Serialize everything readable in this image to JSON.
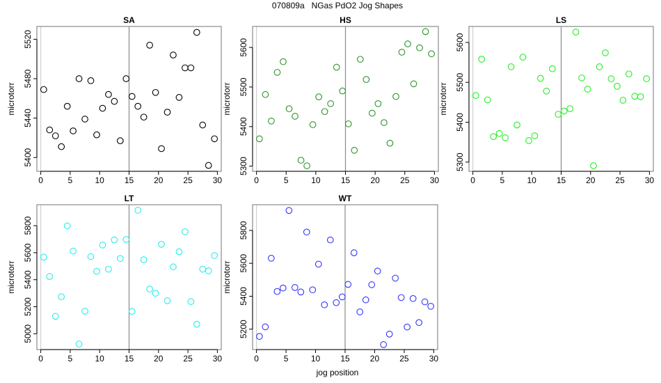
{
  "chart_data": {
    "type": "scatter",
    "title": "070809a   NGas PdO2 Jog Shapes",
    "xlabel": "jog position",
    "ylabel": "microtorr",
    "reference_lines_x": [
      0,
      15
    ],
    "x": [
      0.5,
      1.5,
      2.5,
      3.5,
      4.5,
      5.5,
      6.5,
      7.5,
      8.5,
      9.5,
      10.5,
      11.5,
      12.5,
      13.5,
      14.5,
      15.5,
      16.5,
      17.5,
      18.5,
      19.5,
      20.5,
      21.5,
      22.5,
      23.5,
      24.5,
      25.5,
      26.5,
      27.5,
      28.5,
      29.5
    ],
    "xlim": [
      -0.66,
      30.66
    ],
    "xticks": [
      0,
      5,
      10,
      15,
      20,
      25,
      30
    ],
    "panels": [
      {
        "name": "SA",
        "color": "#000000",
        "ylim": [
          5386,
          5533
        ],
        "yticks": [
          5400,
          5440,
          5480,
          5520
        ],
        "values": [
          5469,
          5428,
          5422,
          5411,
          5452,
          5427,
          5480,
          5439,
          5478,
          5423,
          5450,
          5464,
          5457,
          5417,
          5480,
          5462,
          5452,
          5441,
          5514,
          5466,
          5409,
          5446,
          5504,
          5461,
          5491,
          5491,
          5527,
          5433,
          5392,
          5419
        ]
      },
      {
        "name": "HS",
        "color": "#2a922a",
        "ylim": [
          5287,
          5653
        ],
        "yticks": [
          5300,
          5400,
          5500,
          5600
        ],
        "values": [
          5369,
          5481,
          5414,
          5537,
          5564,
          5445,
          5426,
          5315,
          5301,
          5405,
          5475,
          5438,
          5458,
          5550,
          5490,
          5407,
          5340,
          5570,
          5519,
          5434,
          5458,
          5410,
          5358,
          5476,
          5588,
          5609,
          5508,
          5599,
          5640,
          5584
        ]
      },
      {
        "name": "LS",
        "color": "#22ee22",
        "ylim": [
          5277,
          5640
        ],
        "yticks": [
          5300,
          5400,
          5500,
          5600
        ],
        "values": [
          5467,
          5558,
          5456,
          5364,
          5372,
          5361,
          5539,
          5393,
          5563,
          5354,
          5366,
          5510,
          5478,
          5534,
          5420,
          5428,
          5434,
          5626,
          5511,
          5483,
          5291,
          5539,
          5574,
          5509,
          5490,
          5455,
          5521,
          5465,
          5464,
          5509
        ]
      },
      {
        "name": "LT",
        "color": "#22eeee",
        "ylim": [
          4883,
          5955
        ],
        "yticks": [
          5000,
          5200,
          5400,
          5600,
          5800
        ],
        "values": [
          5567,
          5424,
          5129,
          5274,
          5798,
          5612,
          4924,
          5167,
          5571,
          5462,
          5657,
          5478,
          5695,
          5557,
          5698,
          5166,
          5914,
          5548,
          5331,
          5300,
          5662,
          5245,
          5495,
          5607,
          5755,
          5238,
          5071,
          5478,
          5466,
          5579
        ]
      },
      {
        "name": "WT",
        "color": "#3333ff",
        "ylim": [
          5076,
          5956
        ],
        "yticks": [
          5200,
          5400,
          5600,
          5800
        ],
        "values": [
          5156,
          5214,
          5631,
          5429,
          5450,
          5921,
          5453,
          5426,
          5790,
          5439,
          5595,
          5348,
          5742,
          5361,
          5396,
          5472,
          5664,
          5305,
          5378,
          5470,
          5553,
          5106,
          5170,
          5510,
          5392,
          5213,
          5386,
          5240,
          5366,
          5339
        ]
      }
    ]
  }
}
